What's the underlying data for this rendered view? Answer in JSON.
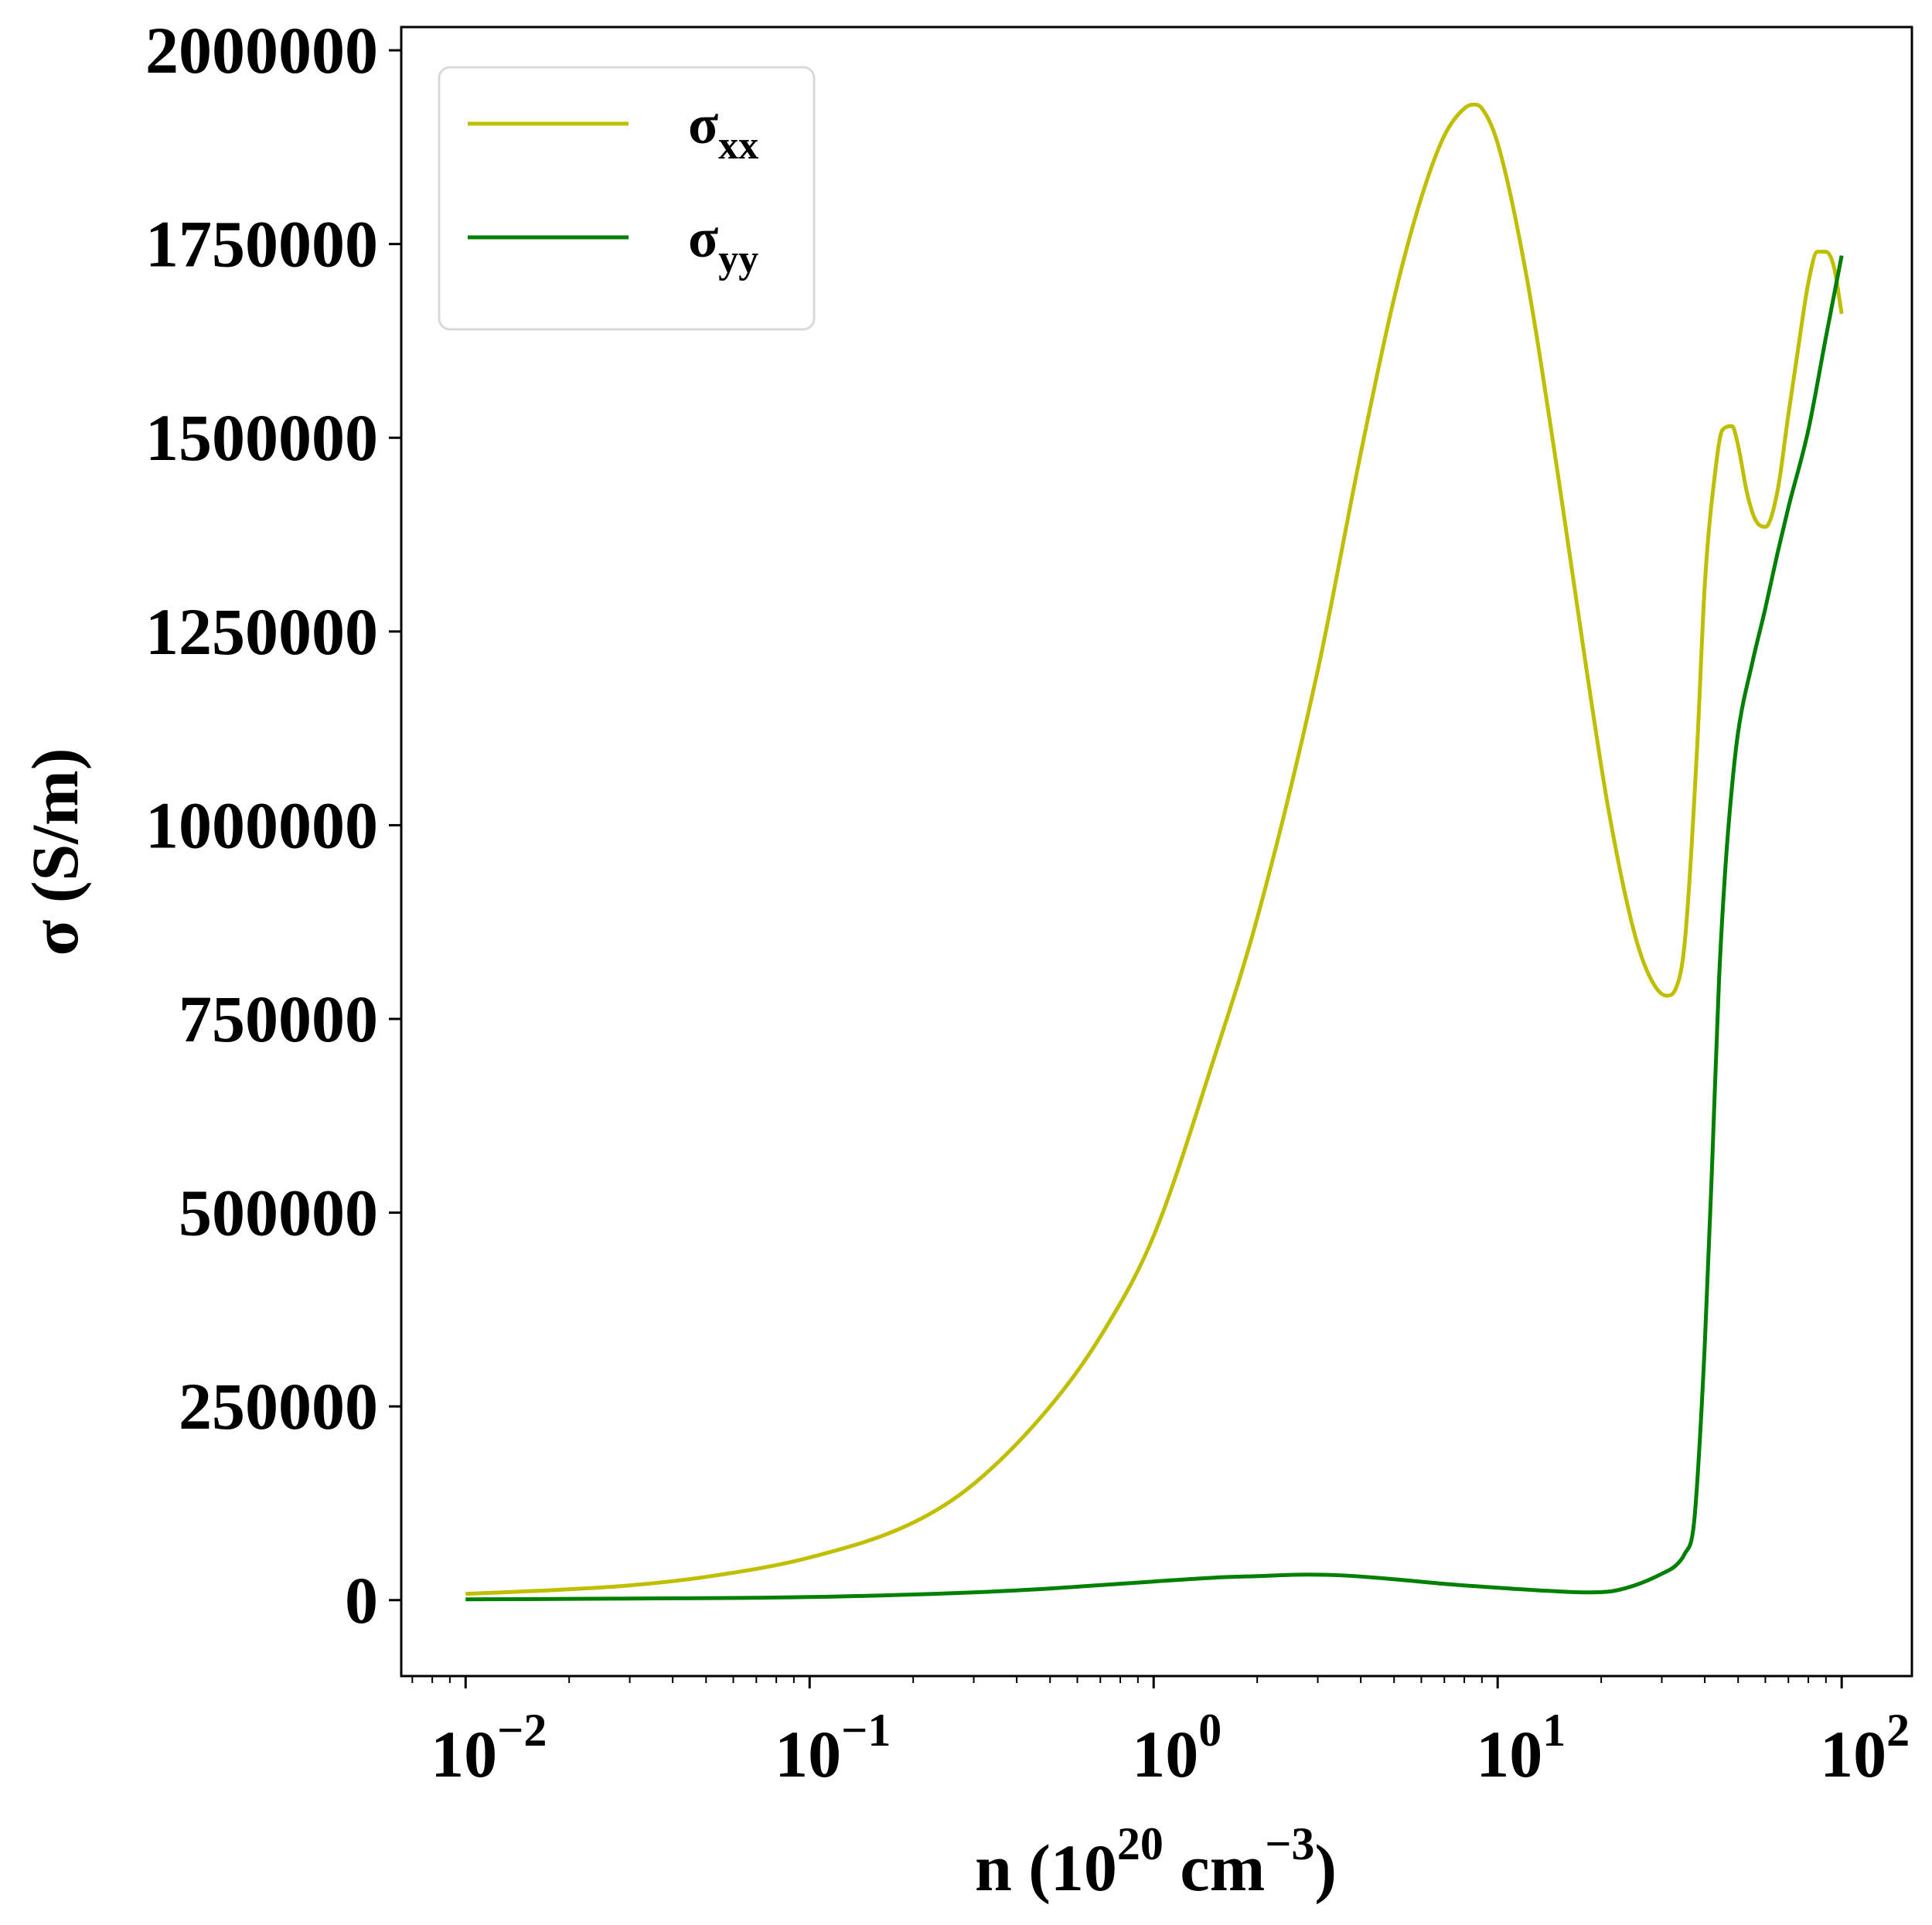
{
  "chart_data": {
    "type": "line",
    "x_scale": "log",
    "xlabel": {
      "base": "n (10",
      "sup1": "20",
      "mid": " cm",
      "sup2": "−3",
      "end": ")"
    },
    "ylabel": "σ (S/m)",
    "xlim": [
      0.0065,
      160
    ],
    "ylim": [
      -98000,
      2030000
    ],
    "y_ticks": [
      0,
      250000,
      500000,
      750000,
      1000000,
      1250000,
      1500000,
      1750000,
      2000000
    ],
    "y_tick_labels": [
      "0",
      "250000",
      "500000",
      "750000",
      "1000000",
      "1250000",
      "1500000",
      "1750000",
      "2000000"
    ],
    "x_ticks": [
      {
        "value": 0.01,
        "base": "10",
        "exp": "−2"
      },
      {
        "value": 0.1,
        "base": "10",
        "exp": "−1"
      },
      {
        "value": 1,
        "base": "10",
        "exp": "0"
      },
      {
        "value": 10,
        "base": "10",
        "exp": "1"
      },
      {
        "value": 100,
        "base": "10",
        "exp": "2"
      }
    ],
    "legend": {
      "position": "top-left",
      "entries": [
        {
          "base": "σ",
          "sub": "xx"
        },
        {
          "base": "σ",
          "sub": "yy"
        }
      ]
    },
    "series": [
      {
        "color": "#bfbf00",
        "x": [
          0.01,
          0.02,
          0.03,
          0.05,
          0.1,
          0.2,
          0.3,
          0.5,
          0.7,
          1.0,
          1.5,
          2.0,
          3.0,
          4.0,
          5.0,
          6.0,
          7.0,
          8.0,
          8.5,
          9.0,
          10,
          12,
          15,
          18,
          21,
          25,
          28,
          31,
          33,
          35,
          38,
          40,
          43,
          45,
          48,
          50,
          53,
          56,
          60,
          65,
          70,
          75,
          80,
          85,
          90,
          95,
          100
        ],
        "y": [
          8000,
          14000,
          19000,
          30000,
          55000,
          100000,
          150000,
          250000,
          340000,
          470000,
          700000,
          880000,
          1200000,
          1480000,
          1680000,
          1810000,
          1890000,
          1925000,
          1930000,
          1925000,
          1880000,
          1720000,
          1450000,
          1210000,
          1020000,
          860000,
          800000,
          780000,
          790000,
          850000,
          1100000,
          1310000,
          1460000,
          1510000,
          1515000,
          1490000,
          1430000,
          1395000,
          1385000,
          1430000,
          1530000,
          1620000,
          1700000,
          1740000,
          1740000,
          1720000,
          1660000
        ]
      },
      {
        "color": "#008000",
        "x": [
          0.01,
          0.03,
          0.1,
          0.3,
          0.5,
          1.0,
          1.5,
          2.0,
          2.8,
          3.5,
          5.0,
          7.0,
          10,
          14,
          18,
          21,
          25,
          30,
          33,
          35,
          37,
          38,
          40,
          42,
          44,
          46,
          48,
          50,
          55,
          60,
          65,
          70,
          80,
          90,
          100
        ],
        "y": [
          1000,
          2000,
          4000,
          10000,
          15000,
          24000,
          29000,
          31000,
          33000,
          32000,
          27000,
          21000,
          16000,
          12000,
          10000,
          11000,
          19000,
          34000,
          45000,
          60000,
          90000,
          150000,
          330000,
          560000,
          800000,
          950000,
          1050000,
          1120000,
          1210000,
          1280000,
          1350000,
          1410000,
          1510000,
          1630000,
          1735000
        ]
      }
    ]
  }
}
